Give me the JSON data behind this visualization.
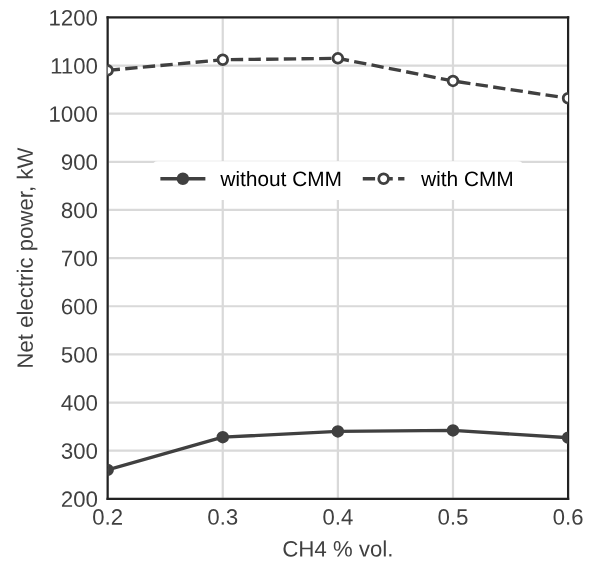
{
  "chart_data": {
    "type": "line",
    "xlabel": "CH4 % vol.",
    "ylabel": "Net electric power, kW",
    "x": [
      0.2,
      0.3,
      0.4,
      0.5,
      0.6
    ],
    "series": [
      {
        "name": "without CMM",
        "color": "#404040",
        "values": [
          260,
          328,
          340,
          342,
          327
        ],
        "marker": "circle",
        "line_style": "solid"
      },
      {
        "name": "with CMM",
        "color": "#404040",
        "values": [
          1090,
          1112,
          1115,
          1068,
          1032
        ],
        "marker": "circle",
        "line_style": "dashed"
      }
    ],
    "xlim": [
      0.2,
      0.6
    ],
    "xticks": [
      0.2,
      0.3,
      0.4,
      0.5,
      0.6
    ],
    "ylim": [
      200,
      1200
    ],
    "yticks": [
      200,
      300,
      400,
      500,
      600,
      700,
      800,
      900,
      1000,
      1100,
      1200
    ],
    "grid": true,
    "legend": "top"
  }
}
